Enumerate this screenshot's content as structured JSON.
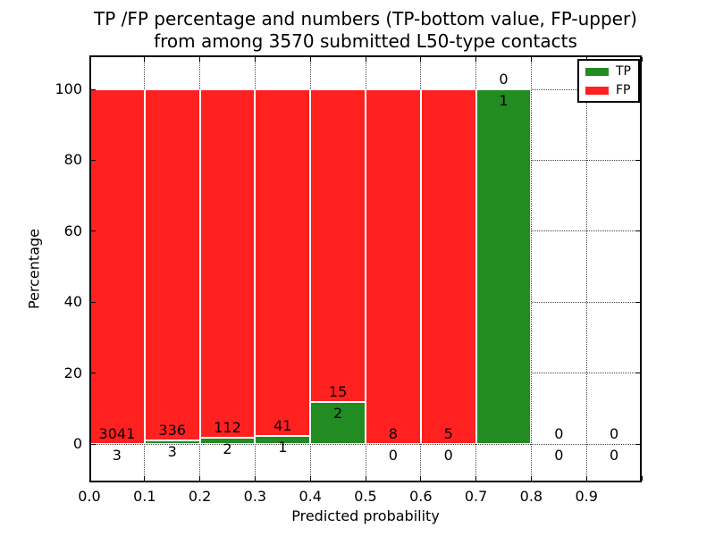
{
  "title_line1": "TP /FP percentage and numbers (TP-bottom value, FP-upper)",
  "title_line2": "from among 3570 submitted L50-type contacts",
  "chart_data": {
    "type": "bar",
    "stacked": true,
    "title": "TP /FP percentage and numbers (TP-bottom value, FP-upper)\nfrom among 3570 submitted L50-type contacts",
    "xlabel": "Predicted probability",
    "ylabel": "Percentage",
    "total_contacts": 3570,
    "categories": [
      "0.0-0.1",
      "0.1-0.2",
      "0.2-0.3",
      "0.3-0.4",
      "0.4-0.5",
      "0.5-0.6",
      "0.6-0.7",
      "0.7-0.8",
      "0.8-0.9",
      "0.9-1.0"
    ],
    "bin_edges": [
      0.0,
      0.1,
      0.2,
      0.3,
      0.4,
      0.5,
      0.6,
      0.7,
      0.8,
      0.9,
      1.0
    ],
    "x_tick_labels": [
      "0.0",
      "0.1",
      "0.2",
      "0.3",
      "0.4",
      "0.5",
      "0.6",
      "0.7",
      "0.8",
      "0.9"
    ],
    "y_ticks": [
      0,
      20,
      40,
      60,
      80,
      100
    ],
    "xlim": [
      0.0,
      1.0
    ],
    "ylim": [
      -10.8,
      109.8
    ],
    "grid": true,
    "bar_value_note": "bars show TP/(TP+FP) percentage; green=TP share, red=FP share; labels are raw counts (FP above boundary, TP below boundary)",
    "series": [
      {
        "name": "TP",
        "color": "#228b22",
        "counts": [
          3,
          3,
          2,
          1,
          2,
          0,
          0,
          1,
          0,
          0
        ]
      },
      {
        "name": "FP",
        "color": "#ff2020",
        "counts": [
          3041,
          336,
          112,
          41,
          15,
          8,
          5,
          0,
          0,
          0
        ]
      }
    ],
    "legend": {
      "position": "upper right",
      "items": [
        {
          "label": "TP",
          "color": "#228b22"
        },
        {
          "label": "FP",
          "color": "#ff2020"
        }
      ]
    }
  }
}
